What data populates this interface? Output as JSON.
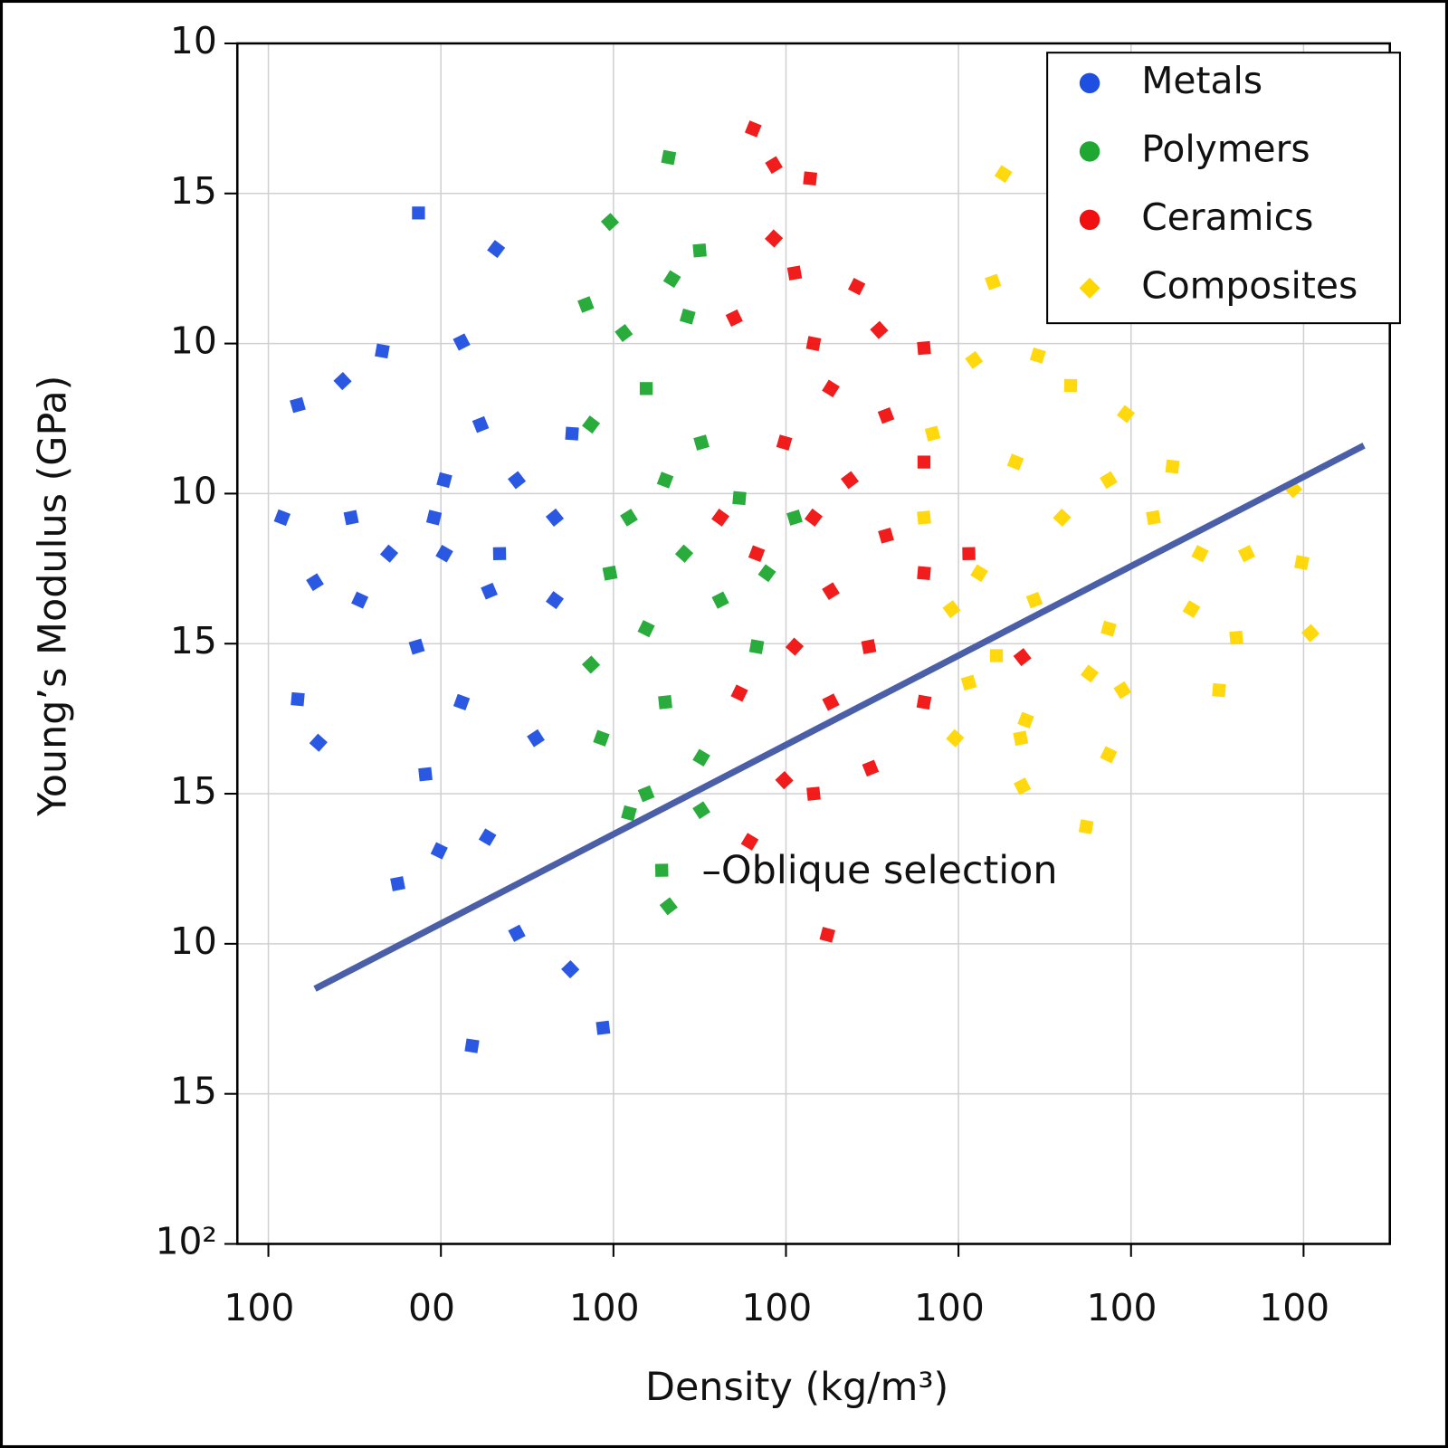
{
  "chart_data": {
    "type": "scatter",
    "x_label": "Density (kg/m³)",
    "y_label": "Young’s Modulus (GPa)",
    "xlim": [
      -0.18,
      6.5
    ],
    "ylim": [
      0,
      8
    ],
    "xticks": [
      {
        "value": 0,
        "label": "100"
      },
      {
        "value": 1,
        "label": "00"
      },
      {
        "value": 2,
        "label": "100"
      },
      {
        "value": 3,
        "label": "100"
      },
      {
        "value": 4,
        "label": "100"
      },
      {
        "value": 5,
        "label": "100"
      },
      {
        "value": 6,
        "label": "100"
      }
    ],
    "yticks": [
      {
        "value": 0,
        "label": "10²"
      },
      {
        "value": 1,
        "label": "15"
      },
      {
        "value": 2,
        "label": "10"
      },
      {
        "value": 3,
        "label": "15"
      },
      {
        "value": 4,
        "label": "15"
      },
      {
        "value": 5,
        "label": "10"
      },
      {
        "value": 6,
        "label": "10"
      },
      {
        "value": 7,
        "label": "15"
      },
      {
        "value": 8,
        "label": "10"
      }
    ],
    "grid": true,
    "legend": "upper right",
    "series": [
      {
        "name": "Metals",
        "color": "#1f4fe0",
        "x": [
          0.87,
          1.32,
          0.17,
          0.08,
          0.27,
          0.17,
          0.29,
          0.75,
          0.99,
          1.12,
          0.66,
          0.43,
          0.91,
          1.27,
          1.23,
          1.02,
          1.44,
          1.34,
          1.66,
          0.86,
          1.12,
          1.55,
          1.76,
          0.7,
          0.48,
          0.53,
          1.44,
          1.18,
          1.75,
          1.94,
          1.02,
          1.28,
          0.96,
          1.66
        ],
        "values": [
          6.87,
          6.63,
          5.59,
          4.84,
          4.41,
          3.63,
          3.34,
          2.4,
          2.62,
          6.01,
          5.95,
          5.75,
          3.13,
          2.71,
          5.46,
          5.09,
          5.09,
          4.6,
          4.29,
          3.98,
          3.61,
          3.37,
          5.4,
          4.6,
          4.84,
          4.29,
          2.07,
          1.32,
          1.83,
          1.44,
          4.6,
          4.35,
          4.84,
          4.84
        ]
      },
      {
        "name": "Polymers",
        "color": "#1ea832",
        "x": [
          2.32,
          1.98,
          2.5,
          2.34,
          1.84,
          2.43,
          2.06,
          2.19,
          1.87,
          2.51,
          2.3,
          2.09,
          2.73,
          2.41,
          1.98,
          2.19,
          2.62,
          2.83,
          1.87,
          2.3,
          2.51,
          2.19,
          2.09,
          2.32,
          2.28,
          2.89,
          3.05,
          1.93,
          2.51
        ],
        "values": [
          7.24,
          6.81,
          6.62,
          6.43,
          6.26,
          6.18,
          6.07,
          5.7,
          5.46,
          5.34,
          5.09,
          4.84,
          4.97,
          4.6,
          4.47,
          4.1,
          4.29,
          3.98,
          3.86,
          3.61,
          3.24,
          3.0,
          2.87,
          2.25,
          2.49,
          4.47,
          4.84,
          3.37,
          2.89
        ]
      },
      {
        "name": "Ceramics",
        "color": "#f01010",
        "x": [
          2.81,
          2.93,
          3.14,
          2.93,
          3.05,
          3.41,
          2.7,
          3.16,
          3.54,
          3.8,
          3.26,
          3.58,
          2.99,
          3.37,
          3.8,
          3.16,
          3.58,
          2.83,
          3.26,
          3.8,
          3.05,
          3.48,
          2.73,
          3.26,
          3.8,
          2.99,
          3.16,
          2.79,
          3.49,
          3.24,
          4.37,
          4.06,
          2.62
        ],
        "values": [
          7.43,
          7.19,
          7.1,
          6.7,
          6.47,
          6.38,
          6.17,
          6.0,
          6.09,
          5.97,
          5.7,
          5.52,
          5.34,
          5.09,
          5.21,
          4.84,
          4.72,
          4.6,
          4.35,
          4.47,
          3.98,
          3.98,
          3.67,
          3.61,
          3.61,
          3.09,
          3.0,
          2.68,
          3.17,
          2.06,
          3.91,
          4.6,
          4.84
        ]
      },
      {
        "name": "Composites",
        "color": "#ffd700",
        "x": [
          4.26,
          4.2,
          4.46,
          4.09,
          4.65,
          4.97,
          3.85,
          4.33,
          4.87,
          5.24,
          4.6,
          5.13,
          5.4,
          5.67,
          5.99,
          6.04,
          5.61,
          4.12,
          4.44,
          4.87,
          3.96,
          4.22,
          4.76,
          4.06,
          4.39,
          4.95,
          5.51,
          3.98,
          4.36,
          4.87,
          4.37,
          4.74,
          5.94,
          3.8,
          5.35
        ],
        "values": [
          7.13,
          6.41,
          5.92,
          5.89,
          5.72,
          5.53,
          5.4,
          5.21,
          5.09,
          5.18,
          4.84,
          4.84,
          4.6,
          4.6,
          4.54,
          4.07,
          4.04,
          4.47,
          4.29,
          4.1,
          4.23,
          3.92,
          3.8,
          3.74,
          3.49,
          3.69,
          3.69,
          3.37,
          3.37,
          3.26,
          3.05,
          2.78,
          5.03,
          4.84,
          4.23
        ]
      }
    ],
    "reference_line": {
      "x": [
        0.27,
        6.35
      ],
      "y": [
        1.7,
        5.32
      ],
      "color": "#4a5fa8"
    },
    "annotation": "–Oblique selection"
  }
}
